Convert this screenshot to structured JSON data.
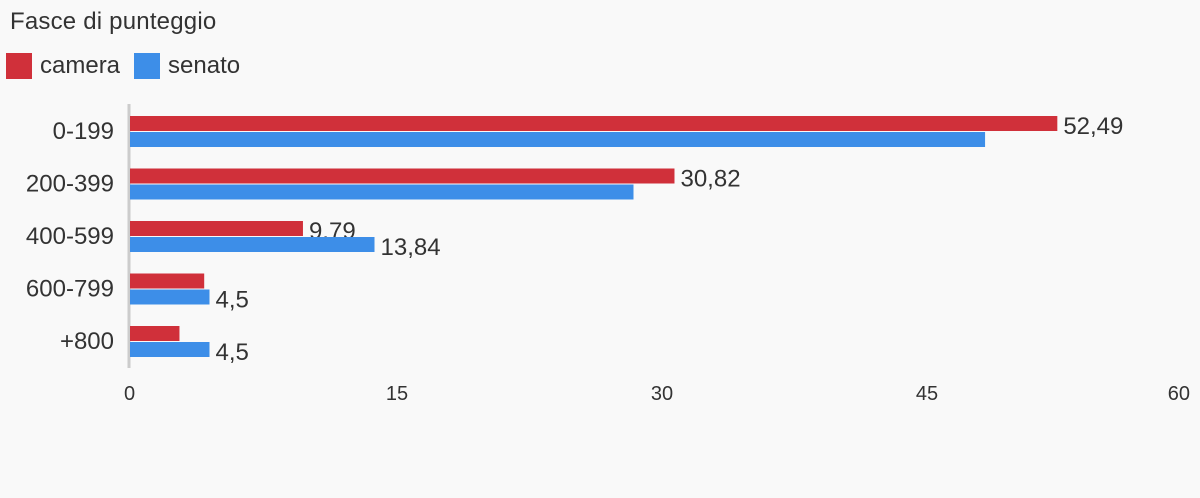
{
  "chart_data": {
    "type": "bar",
    "orientation": "horizontal",
    "title": "Fasce di punteggio",
    "categories": [
      "0-199",
      "200-399",
      "400-599",
      "600-799",
      "+800"
    ],
    "series": [
      {
        "name": "camera",
        "color": "#d0303a",
        "values": [
          52.49,
          30.82,
          9.79,
          4.2,
          2.8
        ],
        "labels": [
          "52,49",
          "30,82",
          "9,79",
          "",
          ""
        ]
      },
      {
        "name": "senato",
        "color": "#3d8ee8",
        "values": [
          48.4,
          28.5,
          13.84,
          4.5,
          4.5
        ],
        "labels": [
          "",
          "",
          "13,84",
          "4,5",
          "4,5"
        ]
      }
    ],
    "xlim": [
      0,
      60
    ],
    "xticks": [
      0,
      15,
      30,
      45,
      60
    ],
    "legend_position": "top-left",
    "grid": false
  }
}
